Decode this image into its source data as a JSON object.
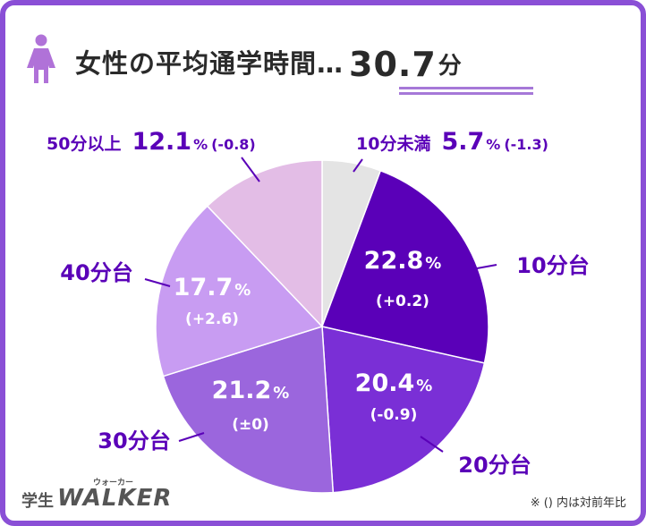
{
  "title": {
    "text": "女性の平均通学時間…",
    "value": "30.7",
    "unit": "分"
  },
  "note": "※ () 内は対前年比",
  "logo": {
    "small": "学生",
    "main": "WALKER",
    "ruby": "ウォーカー"
  },
  "chart_data": {
    "type": "pie",
    "slices": [
      {
        "label": "10分未満",
        "value": 5.7,
        "display": "5.7",
        "change": "(-1.3)",
        "color": "#e4e4e4"
      },
      {
        "label": "10分台",
        "value": 22.8,
        "display": "22.8",
        "change": "(+0.2)",
        "color": "#5a00b8"
      },
      {
        "label": "20分台",
        "value": 20.4,
        "display": "20.4",
        "change": "(-0.9)",
        "color": "#7a2fd6"
      },
      {
        "label": "30分台",
        "value": 21.2,
        "display": "21.2",
        "change": "(±0)",
        "color": "#9b66dd"
      },
      {
        "label": "40分台",
        "value": 17.7,
        "display": "17.7",
        "change": "(+2.6)",
        "color": "#c89cf2"
      },
      {
        "label": "50分以上",
        "value": 12.1,
        "display": "12.1",
        "change": "(-0.8)",
        "color": "#e3bde6"
      }
    ],
    "percent_sign": "%"
  },
  "colors": {
    "frame": "#8a4fd6",
    "label": "#5a00b8",
    "icon": "#b072d8"
  }
}
